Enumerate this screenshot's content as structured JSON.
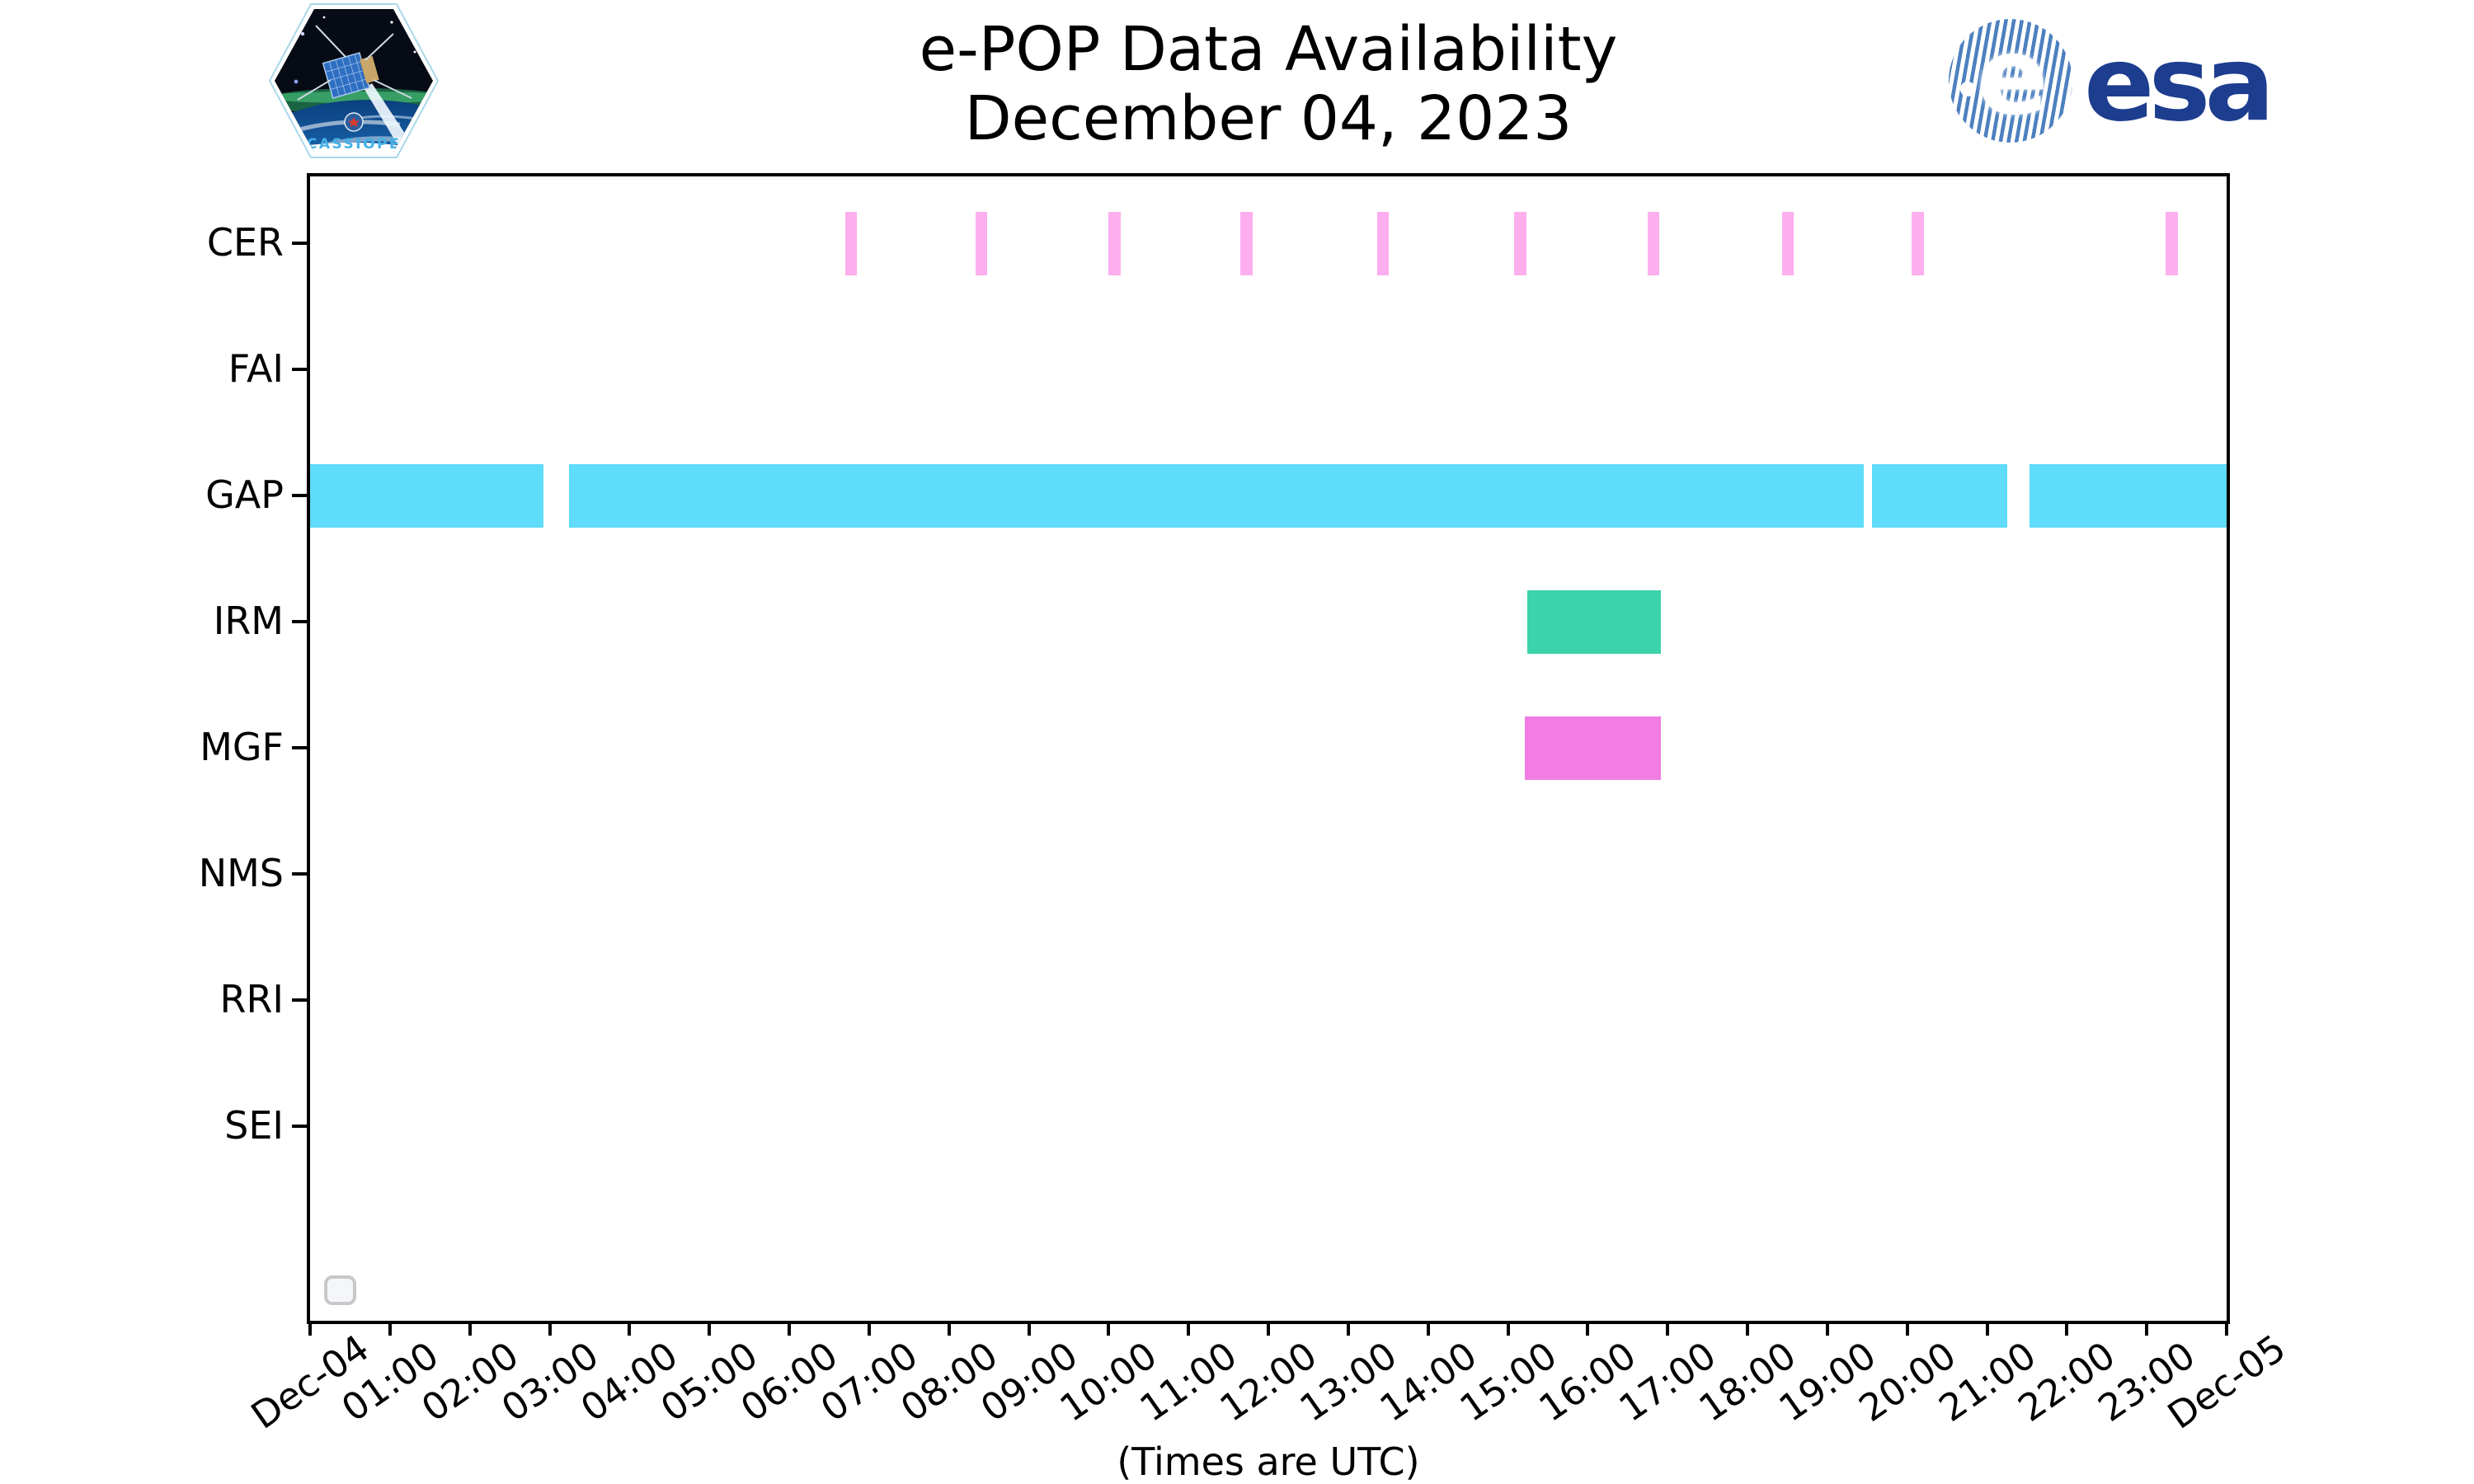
{
  "header": {
    "title_line1": "e-POP Data Availability",
    "title_line2": "December 04, 2023",
    "cassiope_patch_label": "CASSIOPE",
    "esa_logo_text": "esa",
    "esa_globe_letter": "e"
  },
  "footer": {
    "caption": "(Times are UTC)"
  },
  "legend": {
    "style": "empty-rounded-box",
    "entries": []
  },
  "colors": {
    "cer_bar": "#fcaeee",
    "gap_bar": "#5edcf9",
    "irm_bar": "#3bd3ab",
    "mgf_bar": "#f17de4",
    "axis": "#000000",
    "esa_navy": "#1d3d8f",
    "esa_stripe": "#4d80c0",
    "cassiope_text": "#45b1e6",
    "legend_border": "#c8c8c8",
    "legend_fill": "#f4f6fa"
  },
  "chart_data": {
    "type": "timeline",
    "title": "e-POP Data Availability",
    "subtitle": "December 04, 2023",
    "xlabel": "(Times are UTC)",
    "x_axis": {
      "unit": "hours UTC on Dec 04 2023",
      "range": [
        0,
        24
      ],
      "grid": false,
      "ticks": [
        {
          "h": 0,
          "label": "Dec-04"
        },
        {
          "h": 1,
          "label": "01:00"
        },
        {
          "h": 2,
          "label": "02:00"
        },
        {
          "h": 3,
          "label": "03:00"
        },
        {
          "h": 4,
          "label": "04:00"
        },
        {
          "h": 5,
          "label": "05:00"
        },
        {
          "h": 6,
          "label": "06:00"
        },
        {
          "h": 7,
          "label": "07:00"
        },
        {
          "h": 8,
          "label": "08:00"
        },
        {
          "h": 9,
          "label": "09:00"
        },
        {
          "h": 10,
          "label": "10:00"
        },
        {
          "h": 11,
          "label": "11:00"
        },
        {
          "h": 12,
          "label": "12:00"
        },
        {
          "h": 13,
          "label": "13:00"
        },
        {
          "h": 14,
          "label": "14:00"
        },
        {
          "h": 15,
          "label": "15:00"
        },
        {
          "h": 16,
          "label": "16:00"
        },
        {
          "h": 17,
          "label": "17:00"
        },
        {
          "h": 18,
          "label": "18:00"
        },
        {
          "h": 19,
          "label": "19:00"
        },
        {
          "h": 20,
          "label": "20:00"
        },
        {
          "h": 21,
          "label": "21:00"
        },
        {
          "h": 22,
          "label": "22:00"
        },
        {
          "h": 23,
          "label": "23:00"
        },
        {
          "h": 24,
          "label": "Dec-05"
        }
      ]
    },
    "rows": [
      {
        "instrument": "CER",
        "color": "#fcaeee",
        "intervals": [
          [
            6.7,
            6.85
          ],
          [
            8.33,
            8.48
          ],
          [
            10.0,
            10.15
          ],
          [
            11.65,
            11.8
          ],
          [
            13.36,
            13.51
          ],
          [
            15.08,
            15.23
          ],
          [
            16.75,
            16.9
          ],
          [
            18.43,
            18.58
          ],
          [
            20.06,
            20.21
          ],
          [
            23.24,
            23.39
          ]
        ]
      },
      {
        "instrument": "FAI",
        "color": null,
        "intervals": []
      },
      {
        "instrument": "GAP",
        "color": "#5edcf9",
        "intervals": [
          [
            0.0,
            2.92
          ],
          [
            3.24,
            19.46
          ],
          [
            19.56,
            21.25
          ],
          [
            21.53,
            24.0
          ]
        ]
      },
      {
        "instrument": "IRM",
        "color": "#3bd3ab",
        "intervals": [
          [
            15.24,
            16.92
          ]
        ]
      },
      {
        "instrument": "MGF",
        "color": "#f17de4",
        "intervals": [
          [
            15.21,
            16.92
          ]
        ]
      },
      {
        "instrument": "NMS",
        "color": null,
        "intervals": []
      },
      {
        "instrument": "RRI",
        "color": null,
        "intervals": []
      },
      {
        "instrument": "SEI",
        "color": null,
        "intervals": []
      }
    ]
  }
}
